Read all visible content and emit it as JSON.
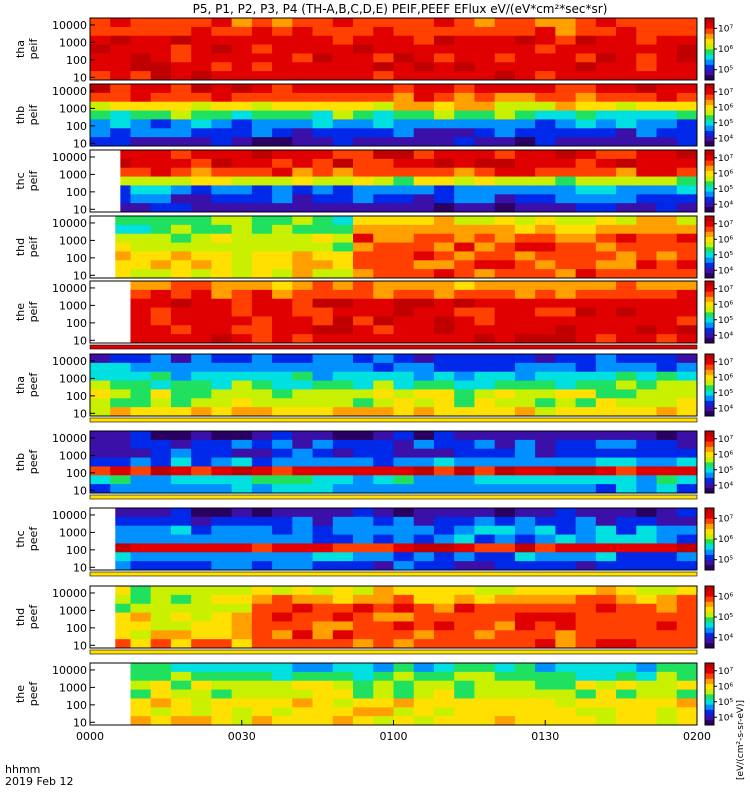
{
  "title": "P5, P1, P2, P3, P4 (TH-A,B,C,D,E) PEIF,PEEF EFlux eV/(eV*cm²*sec*sr)",
  "footer": {
    "hhmm": "hhmm",
    "date": "2019 Feb 12"
  },
  "x_ticks": [
    "0000",
    "0030",
    "0100",
    "0130",
    "0200"
  ],
  "y_ticks": [
    "10",
    "100",
    "1000",
    "10000"
  ],
  "colorbar_unit": "[eV/(cm²-s-sr-eV)]",
  "palette": [
    "#2a0060",
    "#3a10a8",
    "#0028e8",
    "#0090ff",
    "#00e0e0",
    "#20e060",
    "#c8f000",
    "#ffe000",
    "#ffa000",
    "#ff4000",
    "#e00000",
    "#c00000"
  ],
  "chart_data": {
    "type": "heatmap",
    "x_range_minutes": [
      0,
      120
    ],
    "y_scale": "log",
    "y_range_eV": [
      7,
      25000
    ],
    "panels": [
      {
        "probe": "tha",
        "product": "peif",
        "ylabel": "tha\npeif",
        "data_start_min": 0,
        "cb_ticks": [
          "10⁵",
          "10⁶",
          "10⁷"
        ],
        "levels": [
          9,
          9,
          10,
          10,
          10,
          10,
          10
        ],
        "note": "orange-red throughout, darker above 1000 eV after 0130",
        "strip_below": false
      },
      {
        "probe": "thb",
        "product": "peif",
        "ylabel": "thb\npeif",
        "data_start_min": 0,
        "cb_ticks": [
          "10⁴",
          "10⁵",
          "10⁶",
          "10⁷"
        ],
        "levels": [
          10,
          9,
          7,
          5,
          3,
          2,
          1
        ],
        "strip_below": false
      },
      {
        "probe": "thc",
        "product": "peif",
        "ylabel": "thc\npeif",
        "data_start_min": 6,
        "cb_ticks": [
          "10⁴",
          "10⁵",
          "10⁶",
          "10⁷"
        ],
        "levels": [
          10,
          10,
          9,
          6,
          3,
          2,
          1
        ],
        "strip_below": false
      },
      {
        "probe": "thd",
        "product": "peif",
        "ylabel": "thd\npeif",
        "data_start_min": 5,
        "cb_ticks": [
          "10⁴",
          "10⁵",
          "10⁶",
          "10⁷"
        ],
        "levels": [
          5,
          5,
          6,
          6,
          7,
          7,
          7
        ],
        "levels_late": [
          7,
          8,
          9,
          9,
          9,
          9,
          9
        ],
        "late_from_min": 50,
        "strip_below": false
      },
      {
        "probe": "the",
        "product": "peif",
        "ylabel": "the\npeif",
        "data_start_min": 8,
        "cb_ticks": [
          "10⁴",
          "10⁵",
          "10⁶",
          "10⁷"
        ],
        "levels": [
          8,
          9,
          10,
          10,
          10,
          10,
          10
        ],
        "strip_below": true
      },
      {
        "probe": "tha",
        "product": "peef",
        "ylabel": "tha\npeef",
        "data_start_min": 0,
        "cb_ticks": [
          "10⁴",
          "10⁵",
          "10⁶",
          "10⁷"
        ],
        "levels": [
          2,
          3,
          4,
          5,
          6,
          6,
          7
        ],
        "strip_below": true
      },
      {
        "probe": "thb",
        "product": "peef",
        "ylabel": "thb\npeef",
        "data_start_min": 0,
        "cb_ticks": [
          "10⁴",
          "10⁵",
          "10⁶",
          "10⁷"
        ],
        "levels": [
          1,
          2,
          2,
          3,
          10,
          4,
          3
        ],
        "strip_below": true
      },
      {
        "probe": "thc",
        "product": "peef",
        "ylabel": "thc\npeef",
        "data_start_min": 5,
        "cb_ticks": [
          "10⁵",
          "10⁶",
          "10⁷"
        ],
        "levels": [
          1,
          2,
          3,
          3,
          10,
          3,
          2
        ],
        "strip_below": true
      },
      {
        "probe": "thd",
        "product": "peef",
        "ylabel": "thd\npeef",
        "data_start_min": 5,
        "cb_ticks": [
          "10⁴",
          "10⁵",
          "10⁶"
        ],
        "levels": [
          6,
          6,
          6,
          7,
          7,
          7,
          8
        ],
        "levels_late": [
          7,
          8,
          9,
          9,
          9,
          9,
          9
        ],
        "late_from_min": 30,
        "strip_below": true
      },
      {
        "probe": "the",
        "product": "peef",
        "ylabel": "the\npeef",
        "data_start_min": 8,
        "cb_ticks": [
          "10⁴",
          "10⁵",
          "10⁶",
          "10⁷"
        ],
        "levels": [
          4,
          5,
          6,
          6,
          7,
          7,
          7
        ],
        "strip_below": false
      }
    ]
  }
}
